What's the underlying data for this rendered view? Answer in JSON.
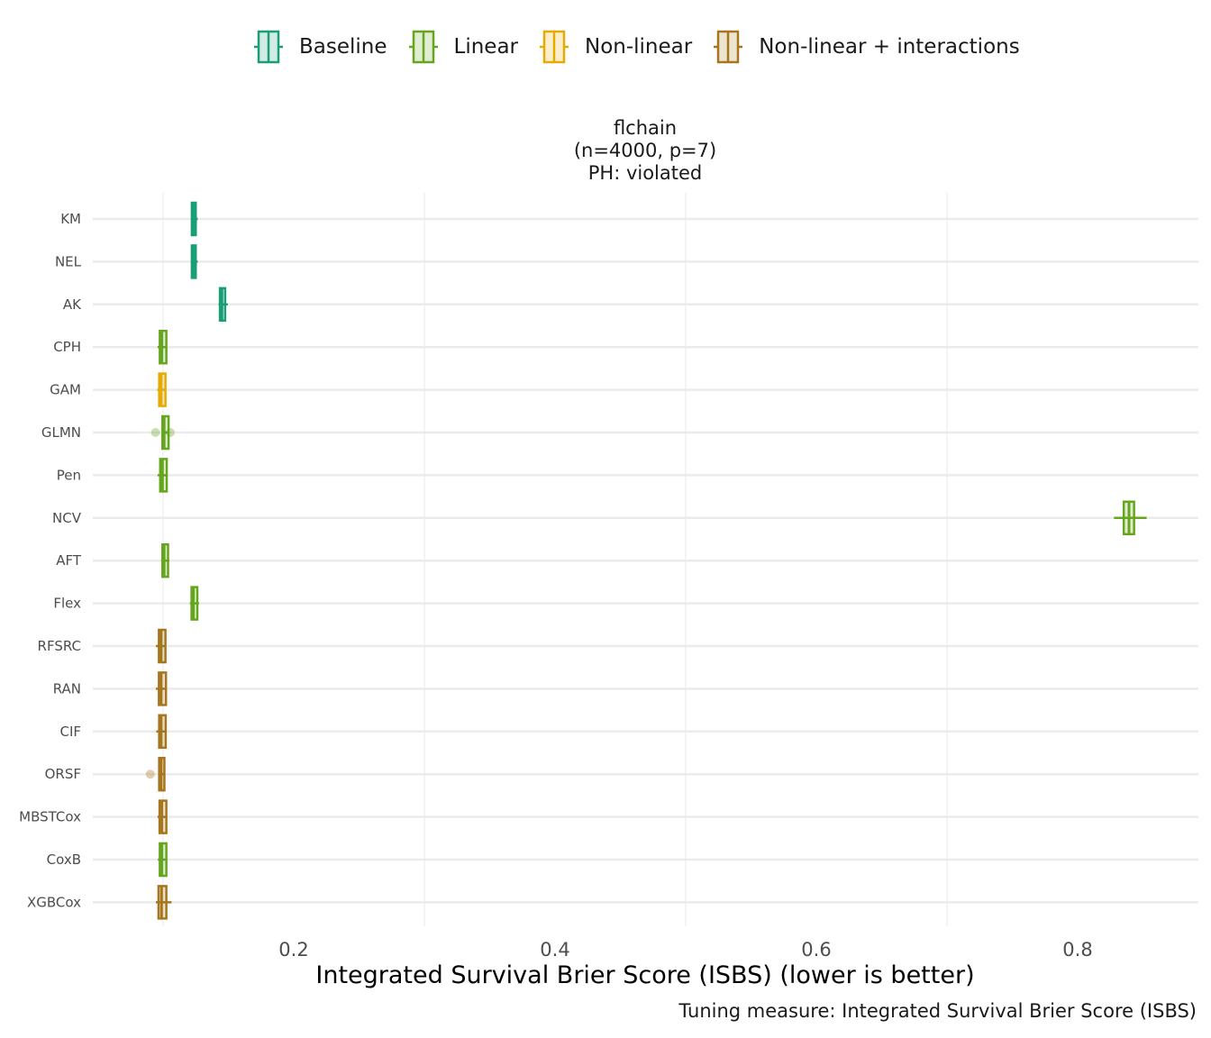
{
  "legend": {
    "items": [
      {
        "label": "Baseline",
        "color": "#1b9e77",
        "fill": "#d1ece4"
      },
      {
        "label": "Linear",
        "color": "#66a61e",
        "fill": "#e0edd2"
      },
      {
        "label": "Non-linear",
        "color": "#e6ab02",
        "fill": "#fbeecc"
      },
      {
        "label": "Non-linear + interactions",
        "color": "#a6761d",
        "fill": "#ede4d2"
      }
    ]
  },
  "panel": {
    "title_line1": "flchain",
    "title_line2": "(n=4000, p=7)",
    "title_line3": "PH: violated"
  },
  "chart_data": {
    "type": "boxplot",
    "orientation": "horizontal",
    "xlabel": "Integrated Survival Brier Score (ISBS) (lower is better)",
    "caption": "Tuning measure: Integrated Survival Brier Score (ISBS)",
    "xlim": [
      0.045,
      0.89
    ],
    "xticks": [
      0.2,
      0.4,
      0.6,
      0.8
    ],
    "xtick_labels": [
      "0.2",
      "0.4",
      "0.6",
      "0.8"
    ],
    "grid": true,
    "legend_position": "top",
    "categories": [
      "KM",
      "NEL",
      "AK",
      "CPH",
      "GAM",
      "GLMN",
      "Pen",
      "NCV",
      "AFT",
      "Flex",
      "RFSRC",
      "RAN",
      "CIF",
      "ORSF",
      "MBSTCox",
      "CoxB",
      "XGBCox"
    ],
    "boxes": [
      {
        "label": "KM",
        "group": "Baseline",
        "whisker_low": 0.1215,
        "q1": 0.122,
        "median": 0.1235,
        "q3": 0.125,
        "whisker_high": 0.1265,
        "outliers": []
      },
      {
        "label": "NEL",
        "group": "Baseline",
        "whisker_low": 0.1215,
        "q1": 0.122,
        "median": 0.1235,
        "q3": 0.125,
        "whisker_high": 0.1265,
        "outliers": []
      },
      {
        "label": "AK",
        "group": "Baseline",
        "whisker_low": 0.1425,
        "q1": 0.1435,
        "median": 0.145,
        "q3": 0.1475,
        "whisker_high": 0.1495,
        "outliers": []
      },
      {
        "label": "CPH",
        "group": "Linear",
        "whisker_low": 0.0958,
        "q1": 0.0975,
        "median": 0.099,
        "q3": 0.1025,
        "whisker_high": 0.103,
        "outliers": []
      },
      {
        "label": "GAM",
        "group": "Non-linear",
        "whisker_low": 0.0955,
        "q1": 0.097,
        "median": 0.0985,
        "q3": 0.1018,
        "whisker_high": 0.1022,
        "outliers": []
      },
      {
        "label": "GLMN",
        "group": "Linear",
        "whisker_low": 0.0995,
        "q1": 0.0995,
        "median": 0.1008,
        "q3": 0.1042,
        "whisker_high": 0.1045,
        "outliers": [
          0.0942,
          0.1055
        ]
      },
      {
        "label": "Pen",
        "group": "Linear",
        "whisker_low": 0.0958,
        "q1": 0.0978,
        "median": 0.0995,
        "q3": 0.1028,
        "whisker_high": 0.1035,
        "outliers": []
      },
      {
        "label": "NCV",
        "group": "Linear",
        "whisker_low": 0.8278,
        "q1": 0.8353,
        "median": 0.8393,
        "q3": 0.8432,
        "whisker_high": 0.8528,
        "outliers": []
      },
      {
        "label": "AFT",
        "group": "Linear",
        "whisker_low": 0.0985,
        "q1": 0.0995,
        "median": 0.1008,
        "q3": 0.1038,
        "whisker_high": 0.1048,
        "outliers": []
      },
      {
        "label": "Flex",
        "group": "Linear",
        "whisker_low": 0.1205,
        "q1": 0.1218,
        "median": 0.1232,
        "q3": 0.1262,
        "whisker_high": 0.1275,
        "outliers": []
      },
      {
        "label": "RFSRC",
        "group": "Non-linear + interactions",
        "whisker_low": 0.0945,
        "q1": 0.0968,
        "median": 0.0985,
        "q3": 0.1018,
        "whisker_high": 0.102,
        "outliers": []
      },
      {
        "label": "RAN",
        "group": "Non-linear + interactions",
        "whisker_low": 0.0945,
        "q1": 0.0968,
        "median": 0.0985,
        "q3": 0.1022,
        "whisker_high": 0.1025,
        "outliers": []
      },
      {
        "label": "CIF",
        "group": "Non-linear + interactions",
        "whisker_low": 0.0948,
        "q1": 0.097,
        "median": 0.0985,
        "q3": 0.102,
        "whisker_high": 0.1023,
        "outliers": []
      },
      {
        "label": "ORSF",
        "group": "Non-linear + interactions",
        "whisker_low": 0.0965,
        "q1": 0.097,
        "median": 0.0985,
        "q3": 0.101,
        "whisker_high": 0.1012,
        "outliers": [
          0.0902
        ]
      },
      {
        "label": "MBSTCox",
        "group": "Non-linear + interactions",
        "whisker_low": 0.0958,
        "q1": 0.0973,
        "median": 0.099,
        "q3": 0.1025,
        "whisker_high": 0.1028,
        "outliers": []
      },
      {
        "label": "CoxB",
        "group": "Linear",
        "whisker_low": 0.096,
        "q1": 0.0975,
        "median": 0.099,
        "q3": 0.1025,
        "whisker_high": 0.1028,
        "outliers": []
      },
      {
        "label": "XGBCox",
        "group": "Non-linear + interactions",
        "whisker_low": 0.0945,
        "q1": 0.0965,
        "median": 0.0988,
        "q3": 0.1025,
        "whisker_high": 0.1065,
        "outliers": []
      }
    ]
  }
}
